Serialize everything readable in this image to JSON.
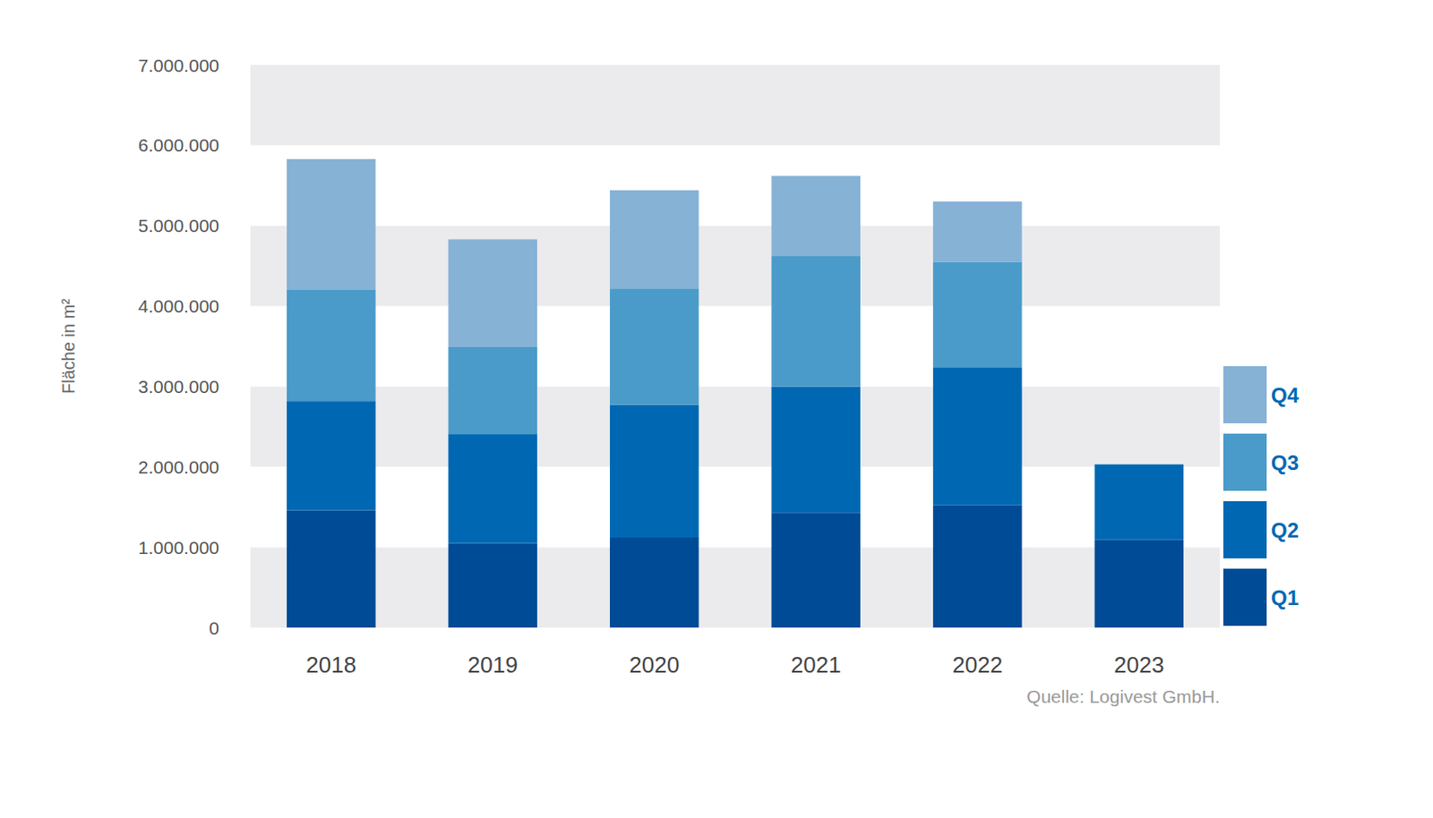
{
  "chart_data": {
    "type": "bar",
    "stacked": true,
    "categories": [
      "2018",
      "2019",
      "2020",
      "2021",
      "2022",
      "2023"
    ],
    "series": [
      {
        "name": "Q1",
        "color": "#004b96",
        "values": [
          1460000,
          1050000,
          1120000,
          1430000,
          1520000,
          1090000
        ]
      },
      {
        "name": "Q2",
        "color": "#0068b3",
        "values": [
          1360000,
          1360000,
          1650000,
          1570000,
          1720000,
          940000
        ]
      },
      {
        "name": "Q3",
        "color": "#4a9bc9",
        "values": [
          1380000,
          1080000,
          1450000,
          1620000,
          1310000,
          null
        ]
      },
      {
        "name": "Q4",
        "color": "#86b2d6",
        "values": [
          1630000,
          1340000,
          1220000,
          1000000,
          750000,
          null
        ]
      }
    ],
    "y_label": "Fläche in m²",
    "ylim": [
      0,
      7000000
    ],
    "yticks": [
      0,
      {
        "value": 1000000,
        "label": "1.000.000"
      },
      {
        "value": 2000000,
        "label": "2.000.000"
      },
      {
        "value": 3000000,
        "label": "3.000.000"
      },
      {
        "value": 4000000,
        "label": "4.000.000"
      },
      {
        "value": 5000000,
        "label": "5.000.000"
      },
      {
        "value": 6000000,
        "label": "6.000.000"
      },
      {
        "value": 7000000,
        "label": "7.000.000"
      }
    ],
    "grid": true,
    "legend": "right",
    "source": "Quelle: Logivest GmbH."
  }
}
